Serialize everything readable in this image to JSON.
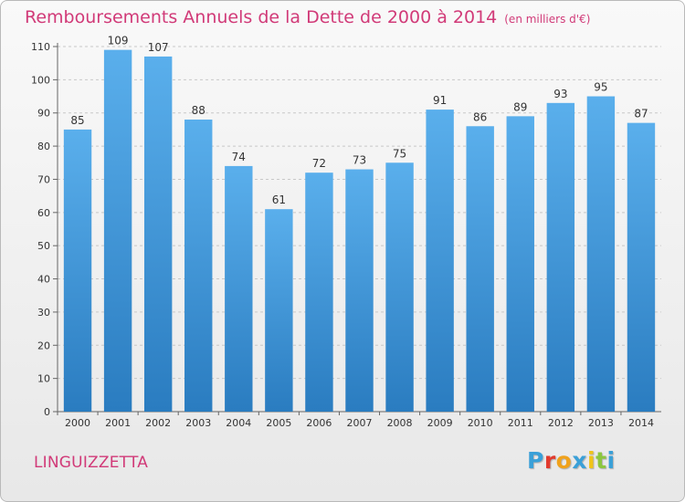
{
  "header": {
    "title": "Remboursements Annuels de la Dette de 2000 à 2014",
    "unit": "(en milliers d'€)"
  },
  "footer": {
    "commune": "LINGUIZZETTA",
    "logo_letters": [
      "P",
      "r",
      "o",
      "x",
      "i",
      "t",
      "i"
    ]
  },
  "colors": {
    "title": "#d13a78",
    "bar_top": "#5aafec",
    "bar_bottom": "#2a7cc0",
    "logo": [
      "#3aa0d8",
      "#e23b2e",
      "#f0a21c",
      "#3aa0d8",
      "#f0c419",
      "#8cc63f",
      "#3aa0d8"
    ]
  },
  "chart_data": {
    "type": "bar",
    "categories": [
      "2000",
      "2001",
      "2002",
      "2003",
      "2004",
      "2005",
      "2006",
      "2007",
      "2008",
      "2009",
      "2010",
      "2011",
      "2012",
      "2013",
      "2014"
    ],
    "values": [
      85,
      109,
      107,
      88,
      74,
      61,
      72,
      73,
      75,
      91,
      86,
      89,
      93,
      95,
      87
    ],
    "title": "Remboursements Annuels de la Dette de 2000 à 2014",
    "ylim": [
      0,
      110
    ],
    "yticks": [
      0,
      10,
      20,
      30,
      40,
      50,
      60,
      70,
      80,
      90,
      100,
      110
    ],
    "grid": true,
    "data_labels": true
  }
}
